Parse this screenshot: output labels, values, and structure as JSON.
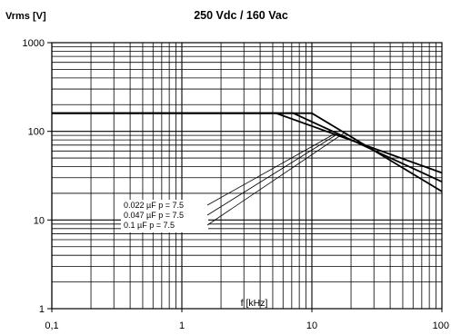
{
  "chart_data": {
    "type": "line",
    "title": "250 Vdc / 160 Vac",
    "ylabel": "Vrms [V]",
    "xlabel": "f [kHz]",
    "x_scale": "log",
    "y_scale": "log",
    "xlim": [
      0.1,
      100
    ],
    "ylim": [
      1,
      1000
    ],
    "x_ticks": [
      "0,1",
      "1",
      "10",
      "100"
    ],
    "y_ticks": [
      "1000",
      "100",
      "10",
      "1"
    ],
    "grid": true,
    "series": [
      {
        "name": "0.022  µF  p = 7.5",
        "x": [
          0.1,
          5.3,
          100
        ],
        "y": [
          160,
          160,
          34
        ]
      },
      {
        "name": "0.047  µF  p = 7.5",
        "x": [
          0.1,
          7.2,
          100
        ],
        "y": [
          160,
          160,
          27
        ]
      },
      {
        "name": "0.1     µF  p = 7.5",
        "x": [
          0.1,
          10.0,
          100
        ],
        "y": [
          160,
          160,
          21
        ]
      }
    ],
    "legend_lines": [
      "0.022  µF  p = 7.5",
      "0.047  µF  p = 7.5",
      "0.1     µF  p = 7.5"
    ]
  }
}
